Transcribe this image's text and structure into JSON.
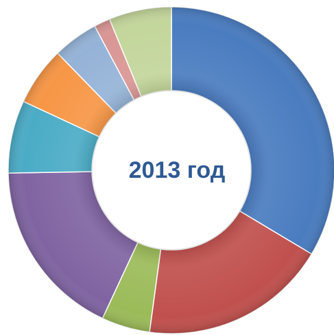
{
  "chart_data": {
    "type": "donut",
    "title": "2013 год",
    "values": [
      33.6,
      18.6,
      4.8,
      17.8,
      7.2,
      5.8,
      4.5,
      1.6,
      6.2
    ],
    "colors": [
      "#4a7cc0",
      "#c0504d",
      "#9bbb59",
      "#8064a2",
      "#4bacc6",
      "#f79646",
      "#95b3d7",
      "#d99694",
      "#c3d69b"
    ]
  }
}
